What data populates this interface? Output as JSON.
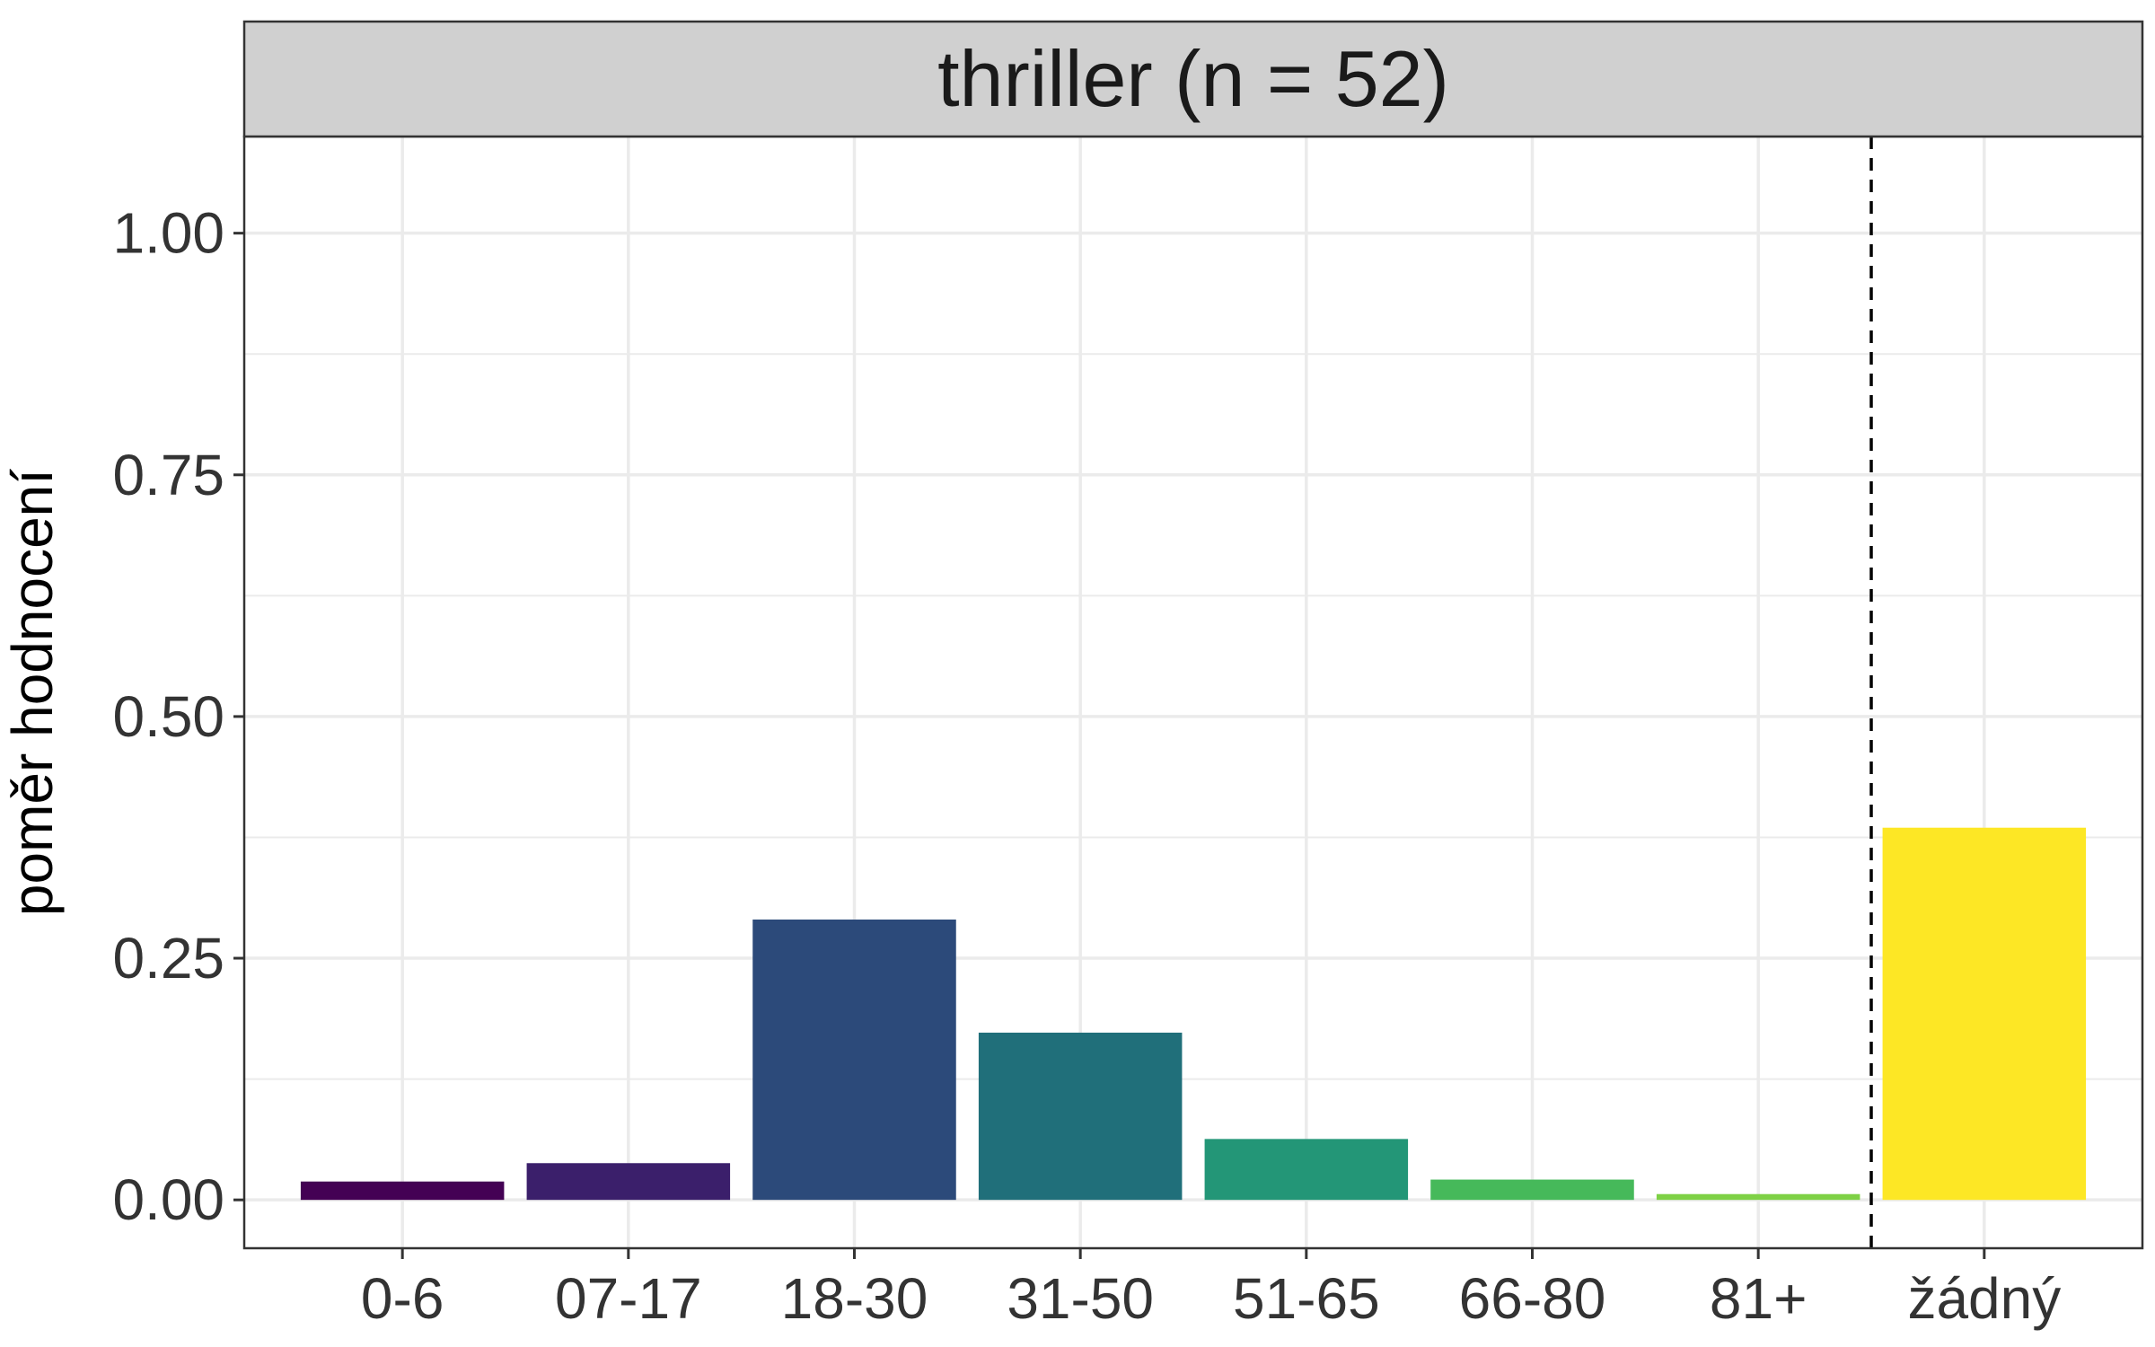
{
  "colors": {
    "strip_background": "#d0d0d0",
    "grid": "#ebebeb",
    "panel_border": "#333333",
    "tick_text": "#333333",
    "reference_line": "#000000"
  },
  "chart_data": {
    "type": "bar",
    "facet_title": "thriller (n = 52)",
    "xlabel": "",
    "ylabel": "poměr hodnocení",
    "categories": [
      "0-6",
      "07-17",
      "18-30",
      "31-50",
      "51-65",
      "66-80",
      "81+",
      "žádný"
    ],
    "values": [
      0.019,
      0.038,
      0.29,
      0.173,
      0.063,
      0.021,
      0.006,
      0.385
    ],
    "bar_colors": [
      "#440154",
      "#3b1f6b",
      "#2c4a7a",
      "#206f7a",
      "#239677",
      "#46b95a",
      "#7ed145",
      "#fde725"
    ],
    "ylim": [
      -0.05,
      1.1
    ],
    "yticks": [
      0,
      0.25,
      0.5,
      0.75,
      1.0
    ],
    "ytick_labels": [
      "0.00",
      "0.25",
      "0.50",
      "0.75",
      "1.00"
    ],
    "reference_line": {
      "between": [
        "81+",
        "žádný"
      ],
      "style": "dashed"
    },
    "grid": true,
    "legend": "none"
  }
}
